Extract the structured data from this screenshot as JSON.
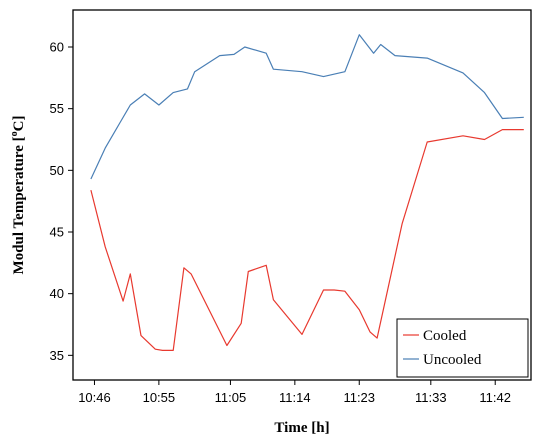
{
  "chart_data": {
    "type": "line",
    "title": "",
    "xlabel": "Time [h]",
    "ylabel_main": "Modul Temperature [",
    "ylabel_sup": "o",
    "ylabel_tail": "C]",
    "xlim": [
      "10:43",
      "11:47"
    ],
    "ylim": [
      33,
      63
    ],
    "x_ticks": [
      "10:46",
      "10:55",
      "11:05",
      "11:14",
      "11:23",
      "11:33",
      "11:42"
    ],
    "y_ticks": [
      35,
      40,
      45,
      50,
      55,
      60
    ],
    "legend_position": "bottom-right",
    "series": [
      {
        "name": "Cooled",
        "color": "#e8392f",
        "points": [
          [
            "10:45:30",
            48.4
          ],
          [
            "10:47:30",
            43.8
          ],
          [
            "10:50:00",
            39.4
          ],
          [
            "10:51:00",
            41.6
          ],
          [
            "10:52:30",
            36.6
          ],
          [
            "10:54:30",
            35.5
          ],
          [
            "10:55:30",
            35.4
          ],
          [
            "10:57:00",
            35.4
          ],
          [
            "10:58:30",
            42.1
          ],
          [
            "10:59:30",
            41.6
          ],
          [
            "11:04:30",
            35.8
          ],
          [
            "11:06:30",
            37.6
          ],
          [
            "11:07:30",
            41.8
          ],
          [
            "11:10:00",
            42.3
          ],
          [
            "11:11:00",
            39.5
          ],
          [
            "11:15:00",
            36.7
          ],
          [
            "11:18:00",
            40.3
          ],
          [
            "11:19:30",
            40.3
          ],
          [
            "11:21:00",
            40.2
          ],
          [
            "11:23:00",
            38.7
          ],
          [
            "11:24:30",
            36.9
          ],
          [
            "11:25:30",
            36.4
          ],
          [
            "11:29:00",
            45.7
          ],
          [
            "11:32:30",
            52.3
          ],
          [
            "11:37:30",
            52.8
          ],
          [
            "11:40:30",
            52.5
          ],
          [
            "11:43:00",
            53.3
          ],
          [
            "11:46:00",
            53.3
          ]
        ]
      },
      {
        "name": "Uncooled",
        "color": "#4a7fb5",
        "points": [
          [
            "10:45:30",
            49.3
          ],
          [
            "10:47:30",
            51.8
          ],
          [
            "10:49:30",
            53.8
          ],
          [
            "10:51:00",
            55.3
          ],
          [
            "10:53:00",
            56.2
          ],
          [
            "10:55:00",
            55.3
          ],
          [
            "10:57:00",
            56.3
          ],
          [
            "10:59:00",
            56.6
          ],
          [
            "11:00:00",
            58.0
          ],
          [
            "11:03:30",
            59.3
          ],
          [
            "11:05:30",
            59.4
          ],
          [
            "11:07:00",
            60.0
          ],
          [
            "11:10:00",
            59.5
          ],
          [
            "11:11:00",
            58.2
          ],
          [
            "11:15:00",
            58.0
          ],
          [
            "11:18:00",
            57.6
          ],
          [
            "11:21:00",
            58.0
          ],
          [
            "11:23:00",
            61.0
          ],
          [
            "11:25:00",
            59.5
          ],
          [
            "11:26:00",
            60.2
          ],
          [
            "11:28:00",
            59.3
          ],
          [
            "11:32:30",
            59.1
          ],
          [
            "11:37:30",
            57.9
          ],
          [
            "11:40:30",
            56.3
          ],
          [
            "11:43:00",
            54.2
          ],
          [
            "11:46:00",
            54.3
          ]
        ]
      }
    ]
  }
}
